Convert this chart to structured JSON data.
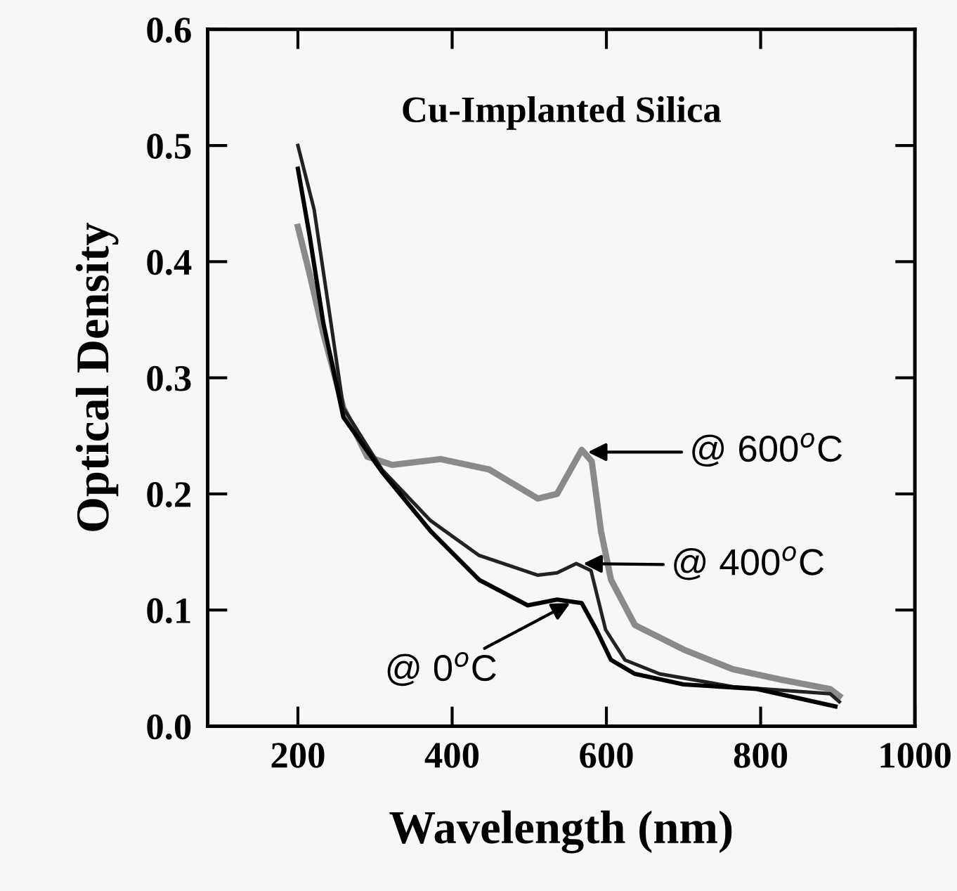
{
  "chart_data": {
    "type": "line",
    "title": "Cu-Implanted Silica",
    "xlabel": "Wavelength (nm)",
    "ylabel": "Optical Density",
    "xlim": [
      83,
      1000
    ],
    "ylim": [
      0,
      0.6
    ],
    "xticks": [
      200,
      400,
      600,
      800,
      1000
    ],
    "yticks": [
      {
        "value": 0,
        "label": "0.0"
      },
      0.1,
      0.2,
      0.3,
      0.4,
      0.5,
      0.6
    ],
    "grid": false,
    "legend": false,
    "line_style": "solid",
    "marker": "none",
    "series": [
      {
        "color": "#8a8a8a",
        "x": [
          200,
          215,
          233,
          259,
          290,
          322,
          385,
          448,
          511,
          536,
          568,
          581,
          593,
          606,
          637,
          700,
          764,
          827,
          890,
          902
        ],
        "values": [
          0.43,
          0.39,
          0.338,
          0.274,
          0.232,
          0.225,
          0.23,
          0.221,
          0.196,
          0.2,
          0.238,
          0.228,
          0.168,
          0.126,
          0.087,
          0.066,
          0.049,
          0.04,
          0.032,
          0.026
        ]
      },
      {
        "color": "#222222",
        "x": [
          200,
          221,
          240,
          259,
          309,
          372,
          435,
          511,
          536,
          561,
          580,
          599,
          624,
          669,
          764,
          890,
          902
        ],
        "values": [
          0.5,
          0.445,
          0.36,
          0.274,
          0.221,
          0.177,
          0.147,
          0.13,
          0.132,
          0.14,
          0.134,
          0.083,
          0.057,
          0.045,
          0.034,
          0.028,
          0.021
        ]
      },
      {
        "color": "#000000",
        "x": [
          200,
          215,
          233,
          259,
          309,
          372,
          435,
          498,
          536,
          568,
          587,
          606,
          637,
          700,
          795,
          897
        ],
        "values": [
          0.48,
          0.423,
          0.347,
          0.266,
          0.219,
          0.168,
          0.126,
          0.104,
          0.109,
          0.106,
          0.083,
          0.057,
          0.045,
          0.036,
          0.032,
          0.017
        ]
      }
    ],
    "annotations": [
      {
        "text": "@ 600$^{o}$C",
        "x": 576,
        "y": 0.236
      },
      {
        "text": "@ 400$^{o}$C",
        "x": 570,
        "y": 0.14
      },
      {
        "text": "@ 0$^{o}$C",
        "x": 553,
        "y": 0.106
      }
    ]
  }
}
